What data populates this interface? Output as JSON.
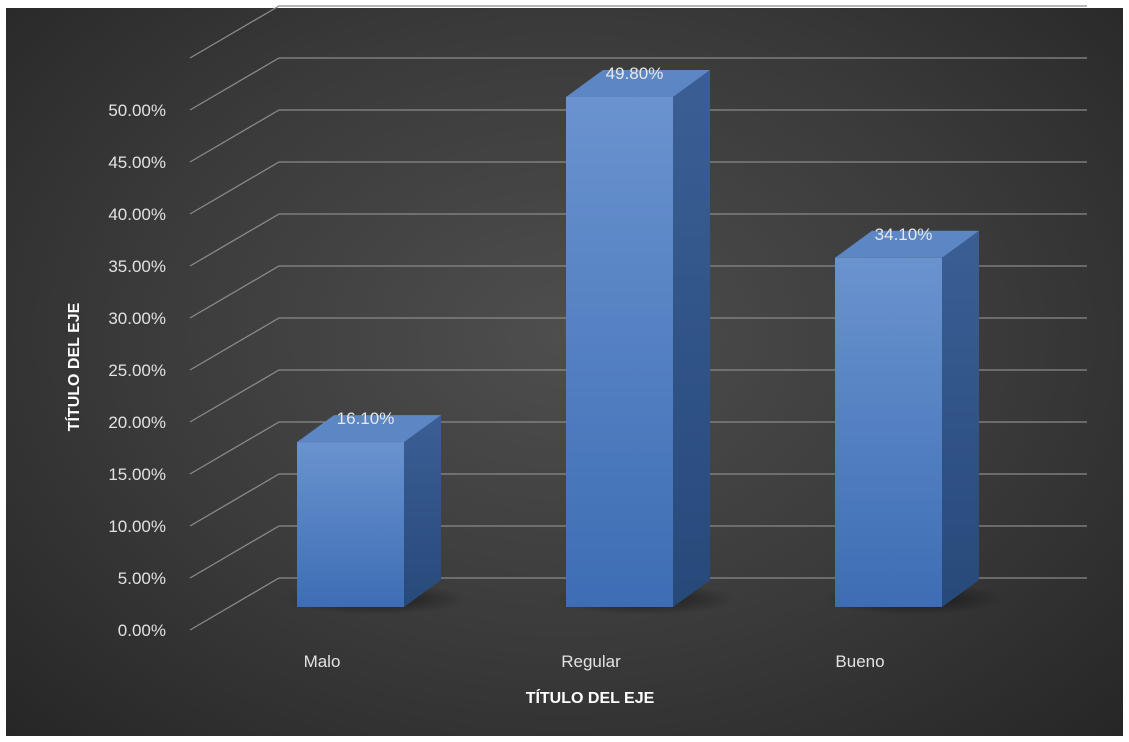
{
  "chart_data": {
    "type": "bar",
    "style": "3d-column",
    "categories": [
      "Malo",
      "Regular",
      "Bueno"
    ],
    "values": [
      16.1,
      49.8,
      34.1
    ],
    "data_labels": [
      "16.10%",
      "49.80%",
      "34.10%"
    ],
    "xlabel": "TÍTULO DEL EJE",
    "ylabel": "TÍTULO DEL EJE",
    "ylim": [
      0,
      50
    ],
    "y_ticks": [
      "0.00%",
      "5.00%",
      "10.00%",
      "15.00%",
      "20.00%",
      "25.00%",
      "30.00%",
      "35.00%",
      "40.00%",
      "45.00%",
      "50.00%"
    ],
    "grid": true,
    "legend": "none",
    "colors": {
      "background": "#3f3f3f",
      "bar_front": "#4a7cc4",
      "bar_side": "#2f568c",
      "bar_top": "#5d86c4",
      "grid": "#8a8a8a",
      "text": "#e2e2e2"
    }
  }
}
